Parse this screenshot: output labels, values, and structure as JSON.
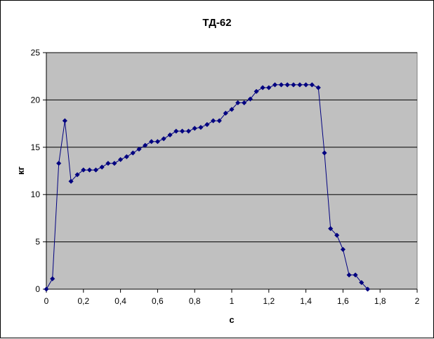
{
  "chart_data": {
    "type": "line",
    "title": "ТД-62",
    "xlabel": "с",
    "ylabel": "кг",
    "xlim": [
      0,
      2
    ],
    "ylim": [
      0,
      25
    ],
    "x_ticks": [
      "0",
      "0,2",
      "0,4",
      "0,6",
      "0,8",
      "1",
      "1,2",
      "1,4",
      "1,6",
      "1,8",
      "2"
    ],
    "y_ticks": [
      "0",
      "5",
      "10",
      "15",
      "20",
      "25"
    ],
    "grid": "horizontal",
    "legend": "none",
    "colors": {
      "plot_background": "#c0c0c0",
      "series": "#000080",
      "gridline": "#000000"
    },
    "series": [
      {
        "x": [
          0,
          0.033,
          0.067,
          0.1,
          0.133,
          0.167,
          0.2,
          0.233,
          0.267,
          0.3,
          0.333,
          0.367,
          0.4,
          0.433,
          0.467,
          0.5,
          0.533,
          0.567,
          0.6,
          0.633,
          0.667,
          0.7,
          0.733,
          0.767,
          0.8,
          0.833,
          0.867,
          0.9,
          0.933,
          0.967,
          1.0,
          1.033,
          1.067,
          1.1,
          1.133,
          1.167,
          1.2,
          1.233,
          1.267,
          1.3,
          1.333,
          1.367,
          1.4,
          1.433,
          1.467,
          1.5,
          1.533,
          1.567,
          1.6,
          1.633,
          1.667,
          1.7,
          1.733
        ],
        "values": [
          0,
          1.1,
          13.3,
          17.8,
          11.4,
          12.1,
          12.6,
          12.6,
          12.6,
          12.9,
          13.3,
          13.3,
          13.7,
          14.0,
          14.4,
          14.8,
          15.2,
          15.6,
          15.6,
          15.9,
          16.3,
          16.7,
          16.7,
          16.7,
          17.0,
          17.1,
          17.4,
          17.8,
          17.8,
          18.6,
          19.0,
          19.7,
          19.7,
          20.1,
          20.9,
          21.3,
          21.3,
          21.6,
          21.6,
          21.6,
          21.6,
          21.6,
          21.6,
          21.6,
          21.3,
          14.4,
          6.4,
          5.7,
          4.2,
          1.5,
          1.5,
          0.7,
          0
        ]
      }
    ]
  }
}
